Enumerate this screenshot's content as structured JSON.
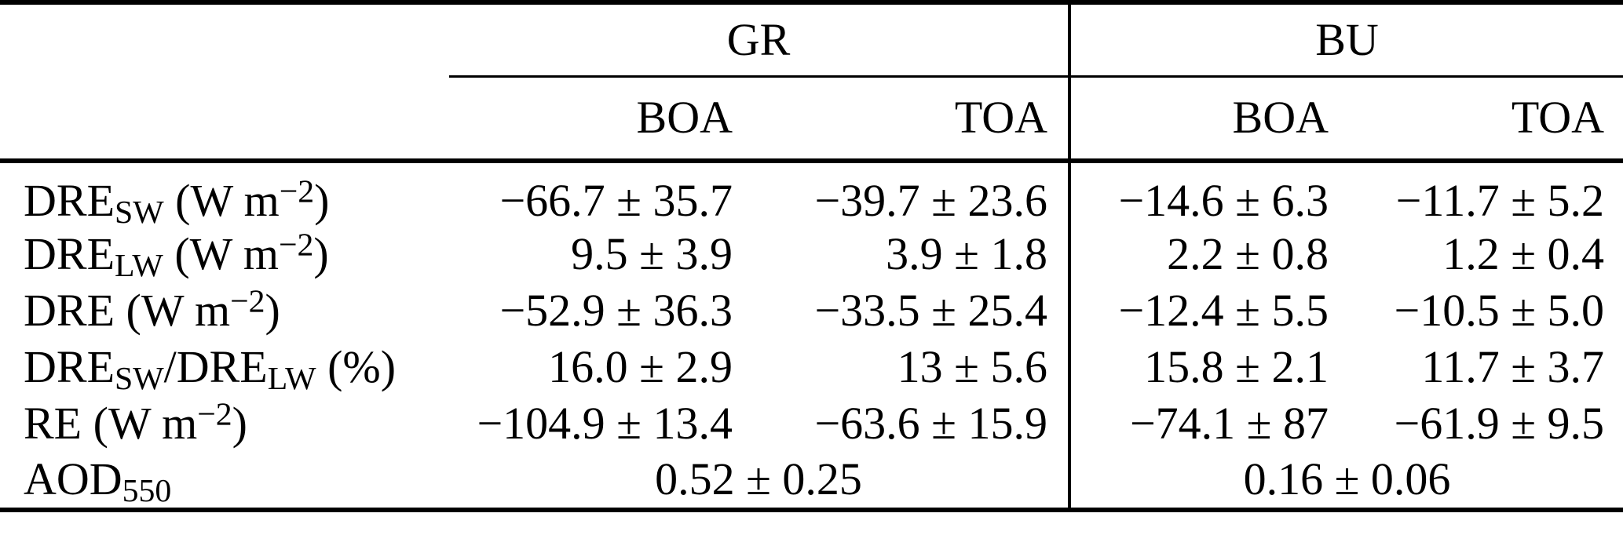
{
  "page": {
    "background_color": "#ffffff",
    "text_color": "#000000",
    "rule_color": "#000000"
  },
  "table": {
    "column_groups": [
      {
        "label": "GR",
        "subcolumns": [
          "BOA",
          "TOA"
        ]
      },
      {
        "label": "BU",
        "subcolumns": [
          "BOA",
          "TOA"
        ]
      }
    ],
    "subheaders": [
      "BOA",
      "TOA",
      "BOA",
      "TOA"
    ],
    "rows": [
      {
        "label": {
          "t1": "DRE",
          "sub1": "SW",
          "t3": " (W m",
          "sup1": "−2",
          "t4": ")"
        },
        "values": [
          "−66.7 ± 35.7",
          "−39.7 ± 23.6",
          "−14.6 ± 6.3",
          "−11.7 ± 5.2"
        ]
      },
      {
        "label": {
          "t1": "DRE",
          "sub1": "LW",
          "t3": " (W m",
          "sup1": "−2",
          "t4": ")"
        },
        "values": [
          "9.5 ± 3.9",
          "3.9 ± 1.8",
          "2.2 ± 0.8",
          "1.2 ± 0.4"
        ]
      },
      {
        "label": {
          "t1": "DRE",
          "t3": " (W m",
          "sup1": "−2",
          "t4": ")"
        },
        "values": [
          "−52.9 ± 36.3",
          "−33.5 ± 25.4",
          "−12.4 ± 5.5",
          "−10.5 ± 5.0"
        ]
      },
      {
        "label": {
          "t1": "DRE",
          "sub1": "SW",
          "t2": "/DRE",
          "sub2": "LW",
          "t3": " (%)"
        },
        "values": [
          "16.0 ± 2.9",
          "13 ± 5.6",
          "15.8 ± 2.1",
          "11.7 ± 3.7"
        ]
      },
      {
        "label": {
          "t1": "RE",
          "t3": " (W m",
          "sup1": "−2",
          "t4": ")"
        },
        "values": [
          "−104.9 ± 13.4",
          "−63.6 ± 15.9",
          "−74.1 ± 87",
          "−61.9 ± 9.5"
        ]
      }
    ],
    "aod_row": {
      "label": {
        "t1": "AOD",
        "sub1": "550"
      },
      "gr_value": "0.52 ± 0.25",
      "bu_value": "0.16 ± 0.06"
    }
  }
}
